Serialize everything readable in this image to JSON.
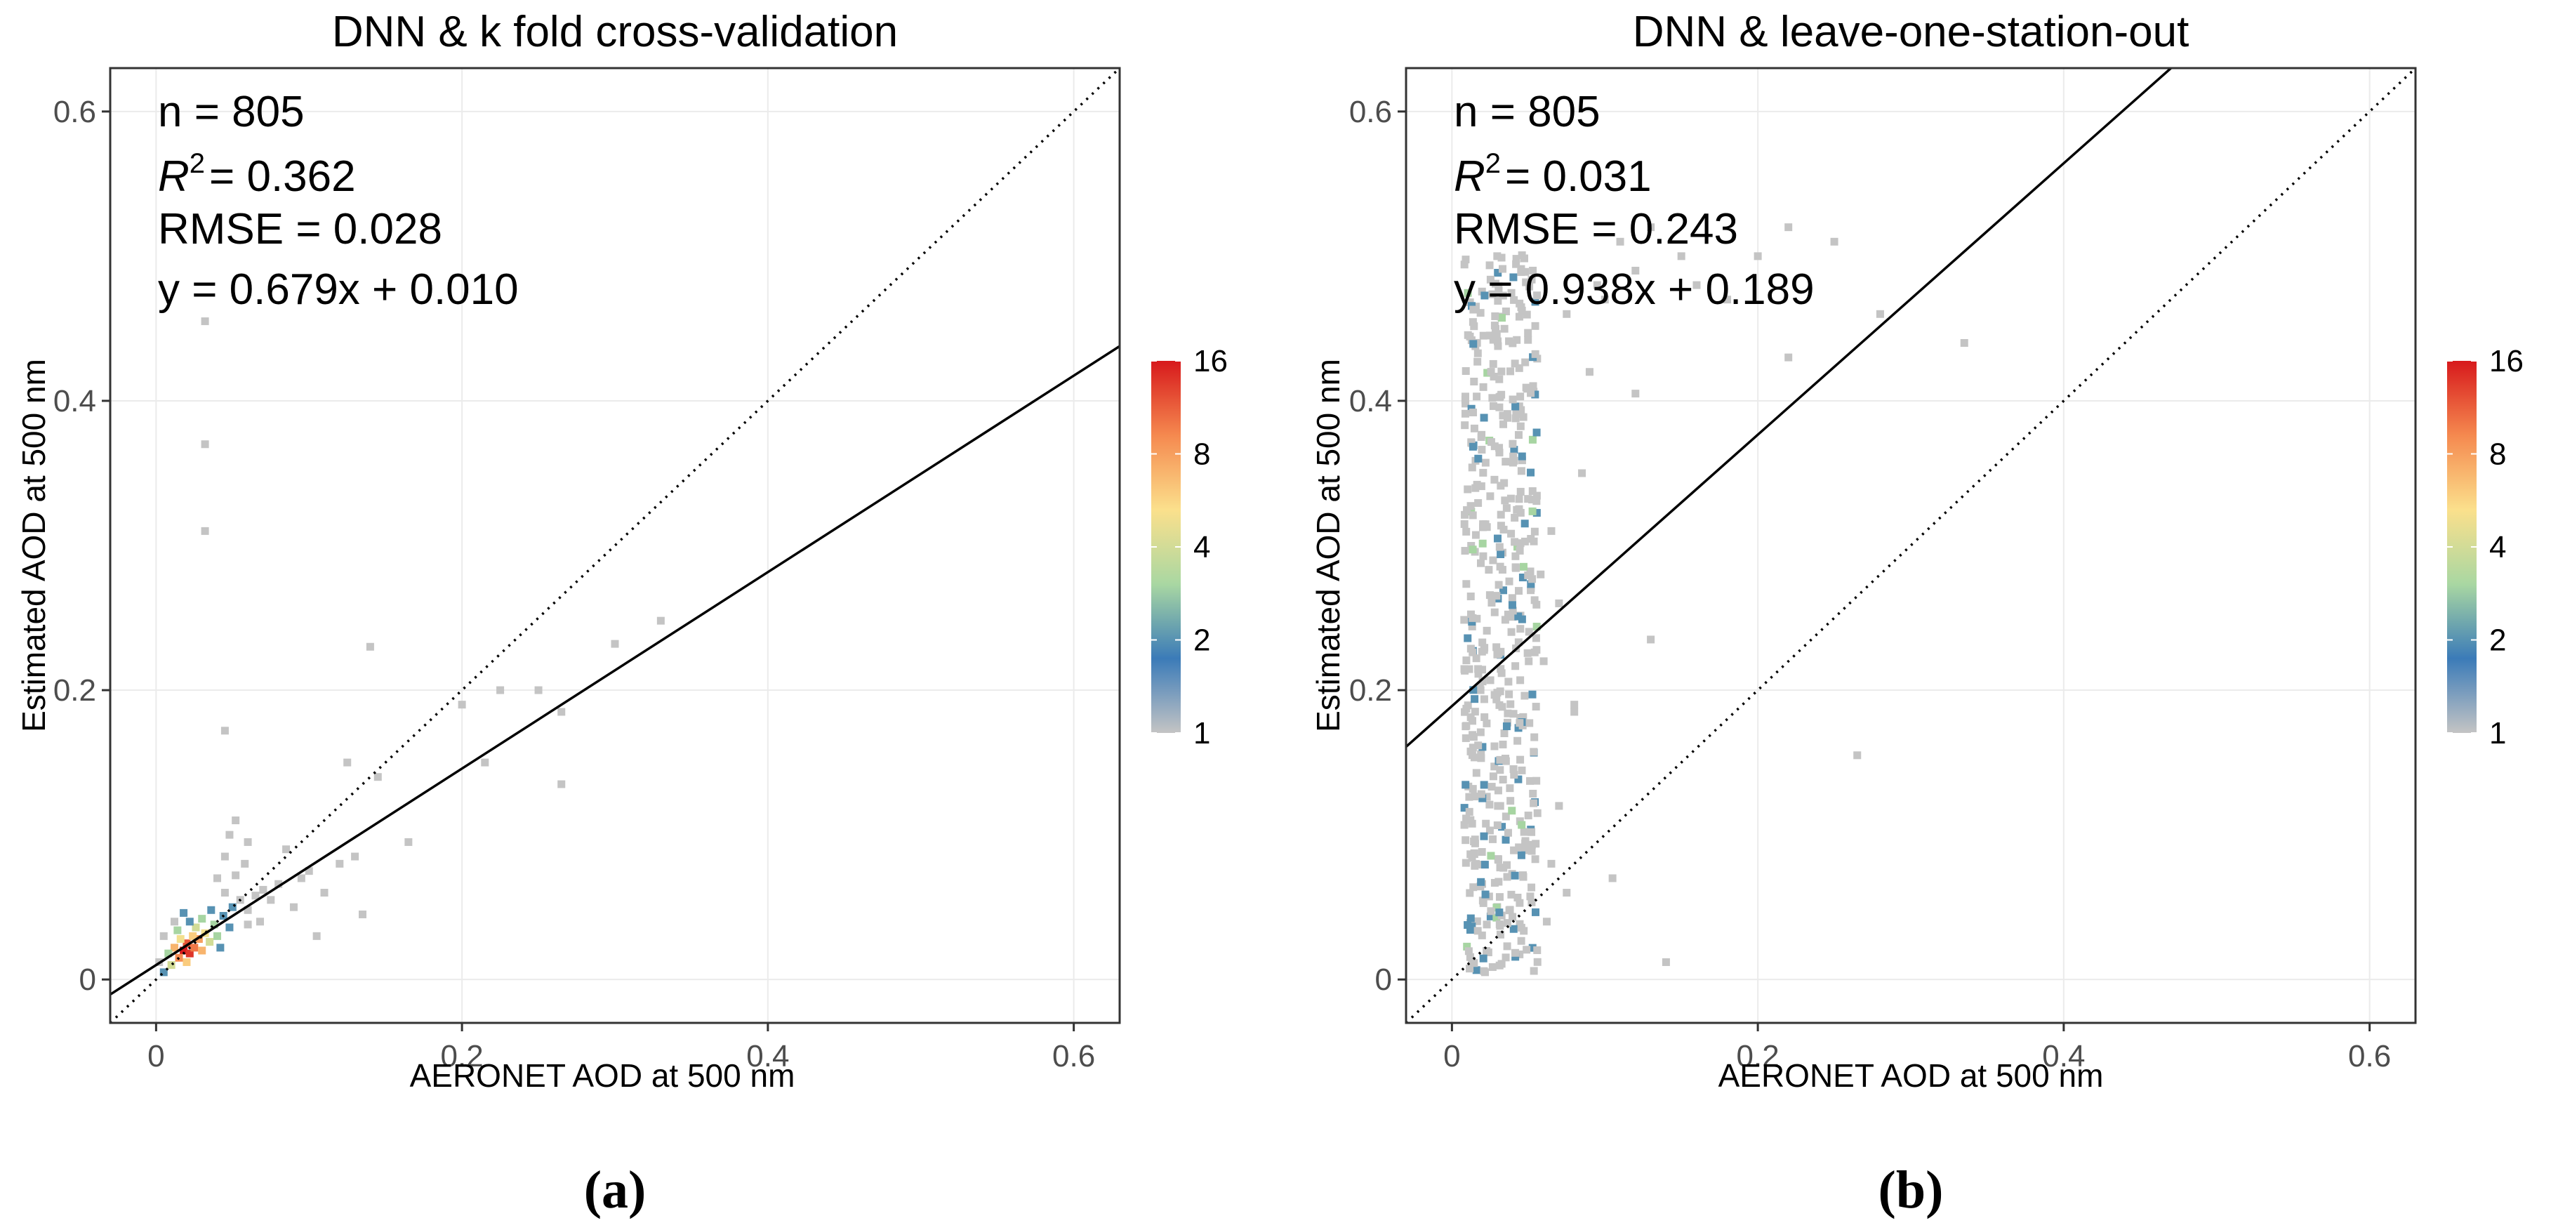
{
  "colorbar": {
    "ticks": [
      1,
      2,
      4,
      8,
      16
    ],
    "colors": [
      "#c4c4c4",
      "#3b7bb8",
      "#a9d7a2",
      "#fbe08c",
      "#f5894f",
      "#d7191c"
    ]
  },
  "chart_data": [
    {
      "type": "scatter",
      "title": "DNN & k fold cross-validation",
      "caption": "(a)",
      "xlabel": "AERONET AOD at 500 nm",
      "ylabel": "Estimated AOD at 500 nm",
      "xlim": [
        -0.03,
        0.63
      ],
      "ylim": [
        -0.03,
        0.63
      ],
      "xticks": [
        0,
        0.2,
        0.4,
        0.6
      ],
      "yticks": [
        0,
        0.2,
        0.4,
        0.6
      ],
      "xtick_labels": [
        "0",
        "0.2",
        "0.4",
        "0.6"
      ],
      "ytick_labels": [
        "0",
        "0.2",
        "0.4",
        "0.6"
      ],
      "stats": {
        "n": "n = 805",
        "r2_symbol": "R",
        "r2_exp": "2",
        "r2_value": "= 0.362",
        "rmse": "RMSE = 0.028",
        "equation": "y = 0.679x + 0.010"
      },
      "regression": {
        "slope": 0.679,
        "intercept": 0.01
      },
      "identity_line": {
        "slope": 1,
        "intercept": 0
      },
      "colorbar_ticks": [
        "1",
        "2",
        "4",
        "8",
        "16"
      ],
      "density_points": [
        [
          0.018,
          0.02,
          16
        ],
        [
          0.022,
          0.018,
          14
        ],
        [
          0.02,
          0.025,
          12
        ],
        [
          0.025,
          0.022,
          10
        ],
        [
          0.015,
          0.015,
          9
        ],
        [
          0.028,
          0.028,
          8
        ],
        [
          0.012,
          0.022,
          7
        ],
        [
          0.03,
          0.02,
          7
        ],
        [
          0.02,
          0.012,
          6
        ],
        [
          0.024,
          0.03,
          6
        ],
        [
          0.016,
          0.028,
          5
        ],
        [
          0.032,
          0.032,
          5
        ],
        [
          0.01,
          0.01,
          4
        ],
        [
          0.035,
          0.026,
          4
        ],
        [
          0.026,
          0.036,
          4
        ],
        [
          0.014,
          0.034,
          3
        ],
        [
          0.038,
          0.038,
          3
        ],
        [
          0.008,
          0.018,
          3
        ],
        [
          0.04,
          0.03,
          3
        ],
        [
          0.03,
          0.042,
          3
        ],
        [
          0.022,
          0.04,
          2
        ],
        [
          0.044,
          0.044,
          2
        ],
        [
          0.005,
          0.005,
          2
        ],
        [
          0.036,
          0.048,
          2
        ],
        [
          0.048,
          0.036,
          2
        ],
        [
          0.05,
          0.05,
          2
        ],
        [
          0.018,
          0.046,
          2
        ],
        [
          0.042,
          0.022,
          2
        ],
        [
          0.055,
          0.055,
          1
        ],
        [
          0.06,
          0.048,
          1
        ],
        [
          0.045,
          0.06,
          1
        ],
        [
          0.065,
          0.058,
          1
        ],
        [
          0.04,
          0.07,
          1
        ],
        [
          0.07,
          0.062,
          1
        ],
        [
          0.052,
          0.072,
          1
        ],
        [
          0.075,
          0.055,
          1
        ],
        [
          0.08,
          0.066,
          1
        ],
        [
          0.058,
          0.08,
          1
        ],
        [
          0.085,
          0.09,
          1
        ],
        [
          0.045,
          0.085,
          1
        ],
        [
          0.048,
          0.1,
          1
        ],
        [
          0.052,
          0.11,
          1
        ],
        [
          0.06,
          0.095,
          1
        ],
        [
          0.095,
          0.07,
          1
        ],
        [
          0.1,
          0.075,
          1
        ],
        [
          0.11,
          0.06,
          1
        ],
        [
          0.12,
          0.08,
          1
        ],
        [
          0.13,
          0.085,
          1
        ],
        [
          0.135,
          0.045,
          1
        ],
        [
          0.125,
          0.15,
          1
        ],
        [
          0.145,
          0.14,
          1
        ],
        [
          0.165,
          0.095,
          1
        ],
        [
          0.14,
          0.23,
          1
        ],
        [
          0.2,
          0.19,
          1
        ],
        [
          0.225,
          0.2,
          1
        ],
        [
          0.215,
          0.15,
          1
        ],
        [
          0.25,
          0.2,
          1
        ],
        [
          0.265,
          0.185,
          1
        ],
        [
          0.265,
          0.135,
          1
        ],
        [
          0.3,
          0.232,
          1
        ],
        [
          0.33,
          0.248,
          1
        ],
        [
          0.045,
          0.172,
          1
        ],
        [
          0.032,
          0.31,
          1
        ],
        [
          0.032,
          0.37,
          1
        ],
        [
          0.032,
          0.455,
          1
        ],
        [
          0.005,
          0.03,
          1
        ],
        [
          0.002,
          0.012,
          1
        ],
        [
          0.06,
          0.038,
          1
        ],
        [
          0.068,
          0.04,
          1
        ],
        [
          0.012,
          0.04,
          1
        ],
        [
          0.09,
          0.05,
          1
        ],
        [
          0.105,
          0.03,
          1
        ]
      ]
    },
    {
      "type": "scatter",
      "title": "DNN & leave-one-station-out",
      "caption": "(b)",
      "xlabel": "AERONET AOD at 500 nm",
      "ylabel": "Estimated AOD at 500 nm",
      "xlim": [
        -0.03,
        0.63
      ],
      "ylim": [
        -0.03,
        0.63
      ],
      "xticks": [
        0,
        0.2,
        0.4,
        0.6
      ],
      "yticks": [
        0,
        0.2,
        0.4,
        0.6
      ],
      "xtick_labels": [
        "0",
        "0.2",
        "0.4",
        "0.6"
      ],
      "ytick_labels": [
        "0",
        "0.2",
        "0.4",
        "0.6"
      ],
      "stats": {
        "n": "n = 805",
        "r2_symbol": "R",
        "r2_exp": "2",
        "r2_value": "= 0.031",
        "rmse": "RMSE = 0.243",
        "equation": "y = 0.938x + 0.189"
      },
      "regression": {
        "slope": 0.938,
        "intercept": 0.189
      },
      "identity_line": {
        "slope": 1,
        "intercept": 0
      },
      "colorbar_ticks": [
        "1",
        "2",
        "4",
        "8",
        "16"
      ],
      "density_points": [
        [
          0.06,
          0.22,
          1
        ],
        [
          0.07,
          0.26,
          1
        ],
        [
          0.065,
          0.31,
          1
        ],
        [
          0.08,
          0.19,
          1
        ],
        [
          0.085,
          0.35,
          1
        ],
        [
          0.09,
          0.42,
          1
        ],
        [
          0.075,
          0.46,
          1
        ],
        [
          0.095,
          0.48,
          1
        ],
        [
          0.1,
          0.47,
          1
        ],
        [
          0.11,
          0.51,
          1
        ],
        [
          0.12,
          0.49,
          1
        ],
        [
          0.13,
          0.52,
          1
        ],
        [
          0.15,
          0.5,
          1
        ],
        [
          0.16,
          0.48,
          1
        ],
        [
          0.18,
          0.47,
          1
        ],
        [
          0.2,
          0.5,
          1
        ],
        [
          0.22,
          0.52,
          1
        ],
        [
          0.22,
          0.43,
          1
        ],
        [
          0.25,
          0.51,
          1
        ],
        [
          0.28,
          0.46,
          1
        ],
        [
          0.335,
          0.44,
          1
        ],
        [
          0.13,
          0.235,
          1
        ],
        [
          0.14,
          0.012,
          1
        ],
        [
          0.265,
          0.155,
          1
        ],
        [
          0.075,
          0.06,
          1
        ],
        [
          0.105,
          0.07,
          1
        ],
        [
          0.08,
          0.185,
          1
        ],
        [
          0.07,
          0.12,
          1
        ],
        [
          0.065,
          0.08,
          1
        ],
        [
          0.12,
          0.405,
          1
        ],
        [
          0.058,
          0.28,
          1
        ],
        [
          0.062,
          0.04,
          1
        ]
      ]
    }
  ]
}
